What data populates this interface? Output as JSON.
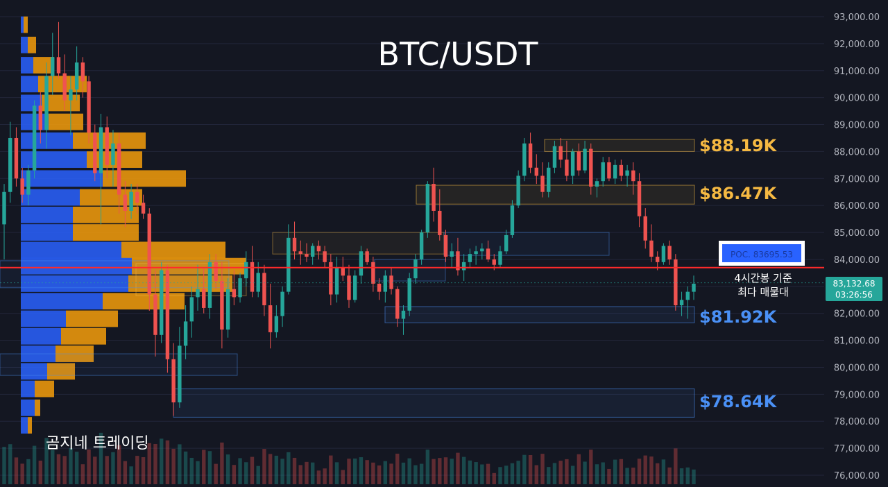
{
  "chart_data": {
    "type": "candlestick",
    "title": "BTC/USDT",
    "watermark": "곰지네 트레이딩",
    "y_axis": {
      "ylim": [
        75800,
        93300
      ],
      "ticks": [
        "93,000.00",
        "92,000.00",
        "91,000.00",
        "90,000.00",
        "89,000.00",
        "88,000.00",
        "87,000.00",
        "86,000.00",
        "85,000.00",
        "84,000.00",
        "83,000.00",
        "82,000.00",
        "81,000.00",
        "80,000.00",
        "79,000.00",
        "78,000.00",
        "77,000.00",
        "76,000.00"
      ],
      "tick_values": [
        93000,
        92000,
        91000,
        90000,
        89000,
        88000,
        87000,
        86000,
        85000,
        84000,
        83000,
        82000,
        81000,
        80000,
        79000,
        78000,
        77000,
        76000
      ]
    },
    "current_price": {
      "value": 83132.68,
      "label": "83,132.68",
      "countdown": "03:26:56",
      "color": "#26a69a"
    },
    "poc": {
      "value": 83695.53,
      "label": "POC. 83695.53",
      "line_color": "#ff2a2a",
      "box_color": "#2962ff"
    },
    "annotation": {
      "line1": "4시간봉 기준",
      "line2": "최다 매물대"
    },
    "levels": [
      {
        "label": "$88.19K",
        "color": "#f5b942",
        "value": 88190,
        "zone": [
          88000,
          88450
        ]
      },
      {
        "label": "$86.47K",
        "color": "#f5b942",
        "value": 86470,
        "zone": [
          86050,
          86750
        ]
      },
      {
        "label": "$81.92K",
        "color": "#4a90f5",
        "value": 81920,
        "zone": [
          81650,
          82250
        ]
      },
      {
        "label": "$78.64K",
        "color": "#4a90f5",
        "value": 78640,
        "zone": [
          78150,
          79200
        ]
      }
    ],
    "colors": {
      "up": "#26a69a",
      "down": "#ef5350",
      "vp_up": "#2962ff",
      "vp_down": "#f59e0b",
      "background": "#141722",
      "grid": "#22263a"
    },
    "volume_profile": [
      {
        "price": 92700,
        "up": 4,
        "down": 6
      },
      {
        "price": 91950,
        "up": 10,
        "down": 12
      },
      {
        "price": 91200,
        "up": 18,
        "down": 30
      },
      {
        "price": 90500,
        "up": 25,
        "down": 70
      },
      {
        "price": 89800,
        "up": 30,
        "down": 55
      },
      {
        "price": 89100,
        "up": 40,
        "down": 50
      },
      {
        "price": 88400,
        "up": 75,
        "down": 105
      },
      {
        "price": 87700,
        "up": 95,
        "down": 80
      },
      {
        "price": 87000,
        "up": 118,
        "down": 120
      },
      {
        "price": 86300,
        "up": 85,
        "down": 90
      },
      {
        "price": 85650,
        "up": 75,
        "down": 95
      },
      {
        "price": 85000,
        "up": 75,
        "down": 95
      },
      {
        "price": 84350,
        "up": 145,
        "down": 150
      },
      {
        "price": 83750,
        "up": 160,
        "down": 165
      },
      {
        "price": 83100,
        "up": 155,
        "down": 150
      },
      {
        "price": 82450,
        "up": 118,
        "down": 118
      },
      {
        "price": 81800,
        "up": 65,
        "down": 75
      },
      {
        "price": 81150,
        "up": 58,
        "down": 65
      },
      {
        "price": 80500,
        "up": 50,
        "down": 55
      },
      {
        "price": 79850,
        "up": 38,
        "down": 40
      },
      {
        "price": 79200,
        "up": 20,
        "down": 28
      },
      {
        "price": 78500,
        "up": 20,
        "down": 8
      },
      {
        "price": 77850,
        "up": 10,
        "down": 6
      }
    ],
    "vp_rows_count": 23,
    "candles": [
      [
        85300,
        86800,
        84000,
        86500
      ],
      [
        86500,
        89100,
        86100,
        88500
      ],
      [
        88500,
        88900,
        86700,
        87000
      ],
      [
        87000,
        87400,
        86100,
        86400
      ],
      [
        86400,
        87500,
        86000,
        87300
      ],
      [
        87300,
        89900,
        87000,
        89700
      ],
      [
        89700,
        90200,
        88300,
        88800
      ],
      [
        88800,
        91300,
        88100,
        90800
      ],
      [
        90800,
        92400,
        90100,
        91500
      ],
      [
        91500,
        92800,
        90700,
        90900
      ],
      [
        90900,
        91600,
        89500,
        89900
      ],
      [
        89900,
        90800,
        88600,
        90300
      ],
      [
        90300,
        91900,
        89900,
        91300
      ],
      [
        91300,
        91500,
        90000,
        90600
      ],
      [
        90600,
        90800,
        88300,
        88700
      ],
      [
        88700,
        89000,
        86900,
        87200
      ],
      [
        87200,
        89400,
        85300,
        88900
      ],
      [
        88900,
        89300,
        87000,
        87500
      ],
      [
        87500,
        88800,
        86700,
        88300
      ],
      [
        88300,
        88700,
        85700,
        86400
      ],
      [
        86400,
        86900,
        85200,
        85800
      ],
      [
        85800,
        86800,
        85500,
        86500
      ],
      [
        86500,
        86800,
        85700,
        86100
      ],
      [
        86100,
        86400,
        85500,
        85700
      ],
      [
        85700,
        85900,
        82100,
        82700
      ],
      [
        82700,
        83600,
        80400,
        81200
      ],
      [
        81200,
        83900,
        80900,
        83600
      ],
      [
        83600,
        83800,
        79800,
        80300
      ],
      [
        80300,
        80900,
        78200,
        78700
      ],
      [
        78700,
        81500,
        78500,
        80800
      ],
      [
        80800,
        82300,
        80300,
        81700
      ],
      [
        81700,
        83000,
        81100,
        82600
      ],
      [
        82600,
        83800,
        82100,
        82900
      ],
      [
        82900,
        83700,
        82000,
        82200
      ],
      [
        82200,
        84200,
        81800,
        83900
      ],
      [
        83900,
        84200,
        82900,
        83200
      ],
      [
        83200,
        83900,
        80700,
        81400
      ],
      [
        81400,
        83300,
        81100,
        82900
      ],
      [
        82900,
        83600,
        82300,
        82600
      ],
      [
        82600,
        83500,
        82400,
        83300
      ],
      [
        83300,
        84300,
        83000,
        83900
      ],
      [
        83900,
        84500,
        82600,
        82800
      ],
      [
        82800,
        83900,
        82600,
        83500
      ],
      [
        83500,
        83800,
        81900,
        82300
      ],
      [
        82300,
        83100,
        80700,
        81300
      ],
      [
        81300,
        82300,
        81100,
        81900
      ],
      [
        81900,
        83000,
        81500,
        82800
      ],
      [
        82800,
        85300,
        82700,
        84800
      ],
      [
        84800,
        85400,
        84000,
        84300
      ],
      [
        84300,
        84700,
        83800,
        84200
      ],
      [
        84200,
        84600,
        83900,
        84100
      ],
      [
        84100,
        84600,
        83800,
        84500
      ],
      [
        84500,
        84700,
        84000,
        84300
      ],
      [
        84300,
        84500,
        83700,
        83900
      ],
      [
        83900,
        84200,
        82300,
        82700
      ],
      [
        82700,
        84100,
        82400,
        83700
      ],
      [
        83700,
        84100,
        83200,
        83400
      ],
      [
        83400,
        83800,
        82200,
        82500
      ],
      [
        82500,
        83600,
        82400,
        83400
      ],
      [
        83400,
        84500,
        83100,
        84300
      ],
      [
        84300,
        84400,
        83800,
        83900
      ],
      [
        83900,
        84100,
        82800,
        83100
      ],
      [
        83100,
        83300,
        82500,
        82800
      ],
      [
        82800,
        83600,
        82400,
        83400
      ],
      [
        83400,
        83700,
        82700,
        82900
      ],
      [
        82900,
        83000,
        81500,
        81800
      ],
      [
        81800,
        82300,
        81200,
        82100
      ],
      [
        82100,
        83500,
        81900,
        83300
      ],
      [
        83300,
        84200,
        83100,
        84000
      ],
      [
        84000,
        85100,
        83800,
        85000
      ],
      [
        85000,
        86900,
        84800,
        86800
      ],
      [
        86800,
        87400,
        85400,
        85800
      ],
      [
        85800,
        86600,
        84700,
        84900
      ],
      [
        84900,
        85100,
        83900,
        84100
      ],
      [
        84100,
        84600,
        83700,
        84300
      ],
      [
        84300,
        84800,
        83400,
        83600
      ],
      [
        83600,
        84200,
        83200,
        83900
      ],
      [
        83900,
        84400,
        83700,
        84200
      ],
      [
        84200,
        84500,
        83800,
        84300
      ],
      [
        84300,
        84600,
        84000,
        84400
      ],
      [
        84400,
        84700,
        83900,
        84000
      ],
      [
        84000,
        84200,
        83600,
        83800
      ],
      [
        83800,
        84500,
        83700,
        84300
      ],
      [
        84300,
        85100,
        84200,
        84900
      ],
      [
        84900,
        86200,
        84800,
        86000
      ],
      [
        86000,
        87300,
        85900,
        87100
      ],
      [
        87100,
        88500,
        86900,
        88300
      ],
      [
        88300,
        88700,
        87200,
        87400
      ],
      [
        87400,
        87900,
        86800,
        87100
      ],
      [
        87100,
        87600,
        86300,
        86500
      ],
      [
        86500,
        87600,
        86300,
        87400
      ],
      [
        87400,
        88400,
        87200,
        88200
      ],
      [
        88200,
        88500,
        87400,
        87700
      ],
      [
        87700,
        88400,
        86900,
        87100
      ],
      [
        87100,
        88100,
        86800,
        88000
      ],
      [
        88000,
        88300,
        87100,
        87300
      ],
      [
        87300,
        88400,
        87200,
        88100
      ],
      [
        88100,
        88300,
        86400,
        86700
      ],
      [
        86700,
        87000,
        86300,
        86900
      ],
      [
        86900,
        87800,
        86700,
        87600
      ],
      [
        87600,
        87800,
        86900,
        87000
      ],
      [
        87000,
        87700,
        86800,
        87500
      ],
      [
        87500,
        87700,
        86900,
        87100
      ],
      [
        87100,
        87500,
        86700,
        87300
      ],
      [
        87300,
        87600,
        86400,
        86900
      ],
      [
        86900,
        87200,
        85200,
        85600
      ],
      [
        85600,
        85900,
        84400,
        84700
      ],
      [
        84700,
        85300,
        83900,
        84100
      ],
      [
        84100,
        84300,
        83600,
        83900
      ],
      [
        83900,
        84600,
        83800,
        84500
      ],
      [
        84500,
        84700,
        83800,
        84000
      ],
      [
        84000,
        84200,
        82100,
        82300
      ],
      [
        82300,
        82800,
        81900,
        82500
      ],
      [
        82500,
        83000,
        81800,
        82800
      ],
      [
        82800,
        83400,
        82500,
        83100
      ]
    ]
  }
}
